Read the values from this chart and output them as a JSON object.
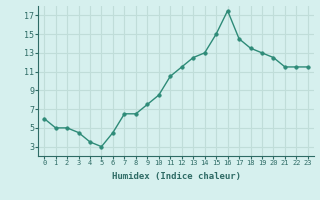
{
  "x": [
    0,
    1,
    2,
    3,
    4,
    5,
    6,
    7,
    8,
    9,
    10,
    11,
    12,
    13,
    14,
    15,
    16,
    17,
    18,
    19,
    20,
    21,
    22,
    23
  ],
  "y": [
    6,
    5,
    5,
    4.5,
    3.5,
    3,
    4.5,
    6.5,
    6.5,
    7.5,
    8.5,
    10.5,
    11.5,
    12.5,
    13,
    15,
    17.5,
    14.5,
    13.5,
    13,
    12.5,
    11.5,
    11.5,
    11.5
  ],
  "line_color": "#2e8b78",
  "marker_color": "#2e8b78",
  "background_color": "#d6f0ee",
  "grid_color": "#c0ddd9",
  "xlabel": "Humidex (Indice chaleur)",
  "ylim": [
    2,
    18
  ],
  "xlim": [
    -0.5,
    23.5
  ],
  "yticks": [
    3,
    5,
    7,
    9,
    11,
    13,
    15,
    17
  ],
  "xticks": [
    0,
    1,
    2,
    3,
    4,
    5,
    6,
    7,
    8,
    9,
    10,
    11,
    12,
    13,
    14,
    15,
    16,
    17,
    18,
    19,
    20,
    21,
    22,
    23
  ],
  "xtick_labels": [
    "0",
    "1",
    "2",
    "3",
    "4",
    "5",
    "6",
    "7",
    "8",
    "9",
    "10",
    "11",
    "12",
    "13",
    "14",
    "15",
    "16",
    "17",
    "18",
    "19",
    "20",
    "21",
    "22",
    "23"
  ],
  "font_color": "#2e6b65",
  "linewidth": 1.0,
  "markersize": 2.5
}
